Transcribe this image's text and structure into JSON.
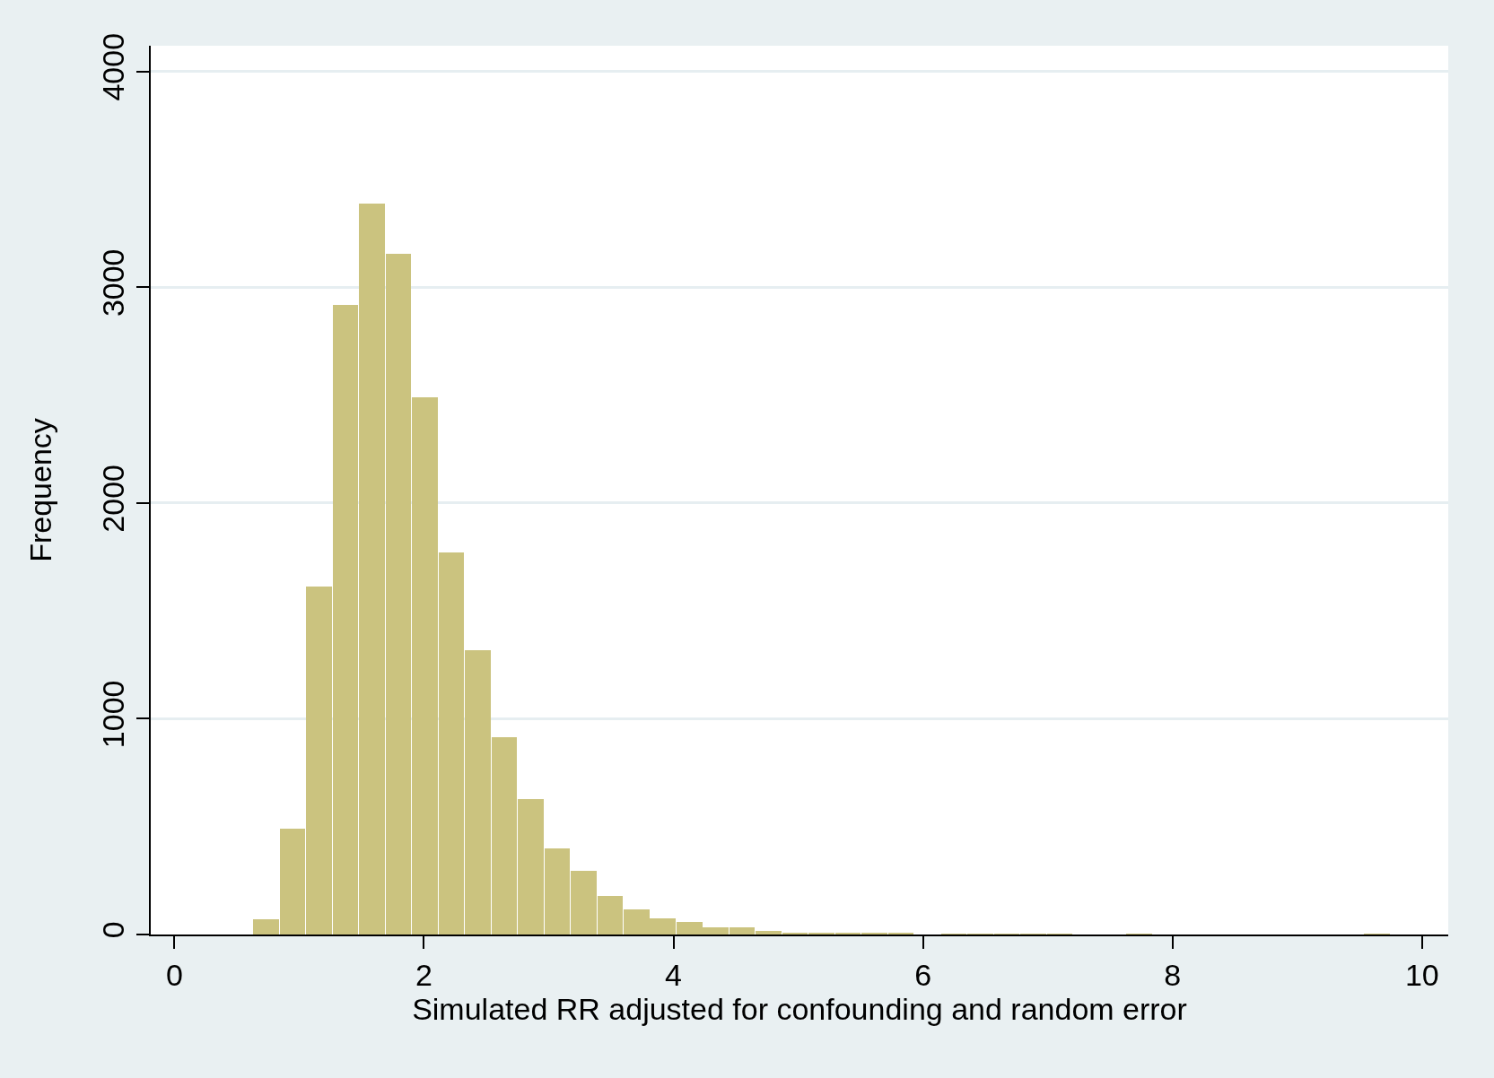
{
  "chart_data": {
    "type": "histogram",
    "xlabel": "Simulated RR adjusted for confounding and random error",
    "ylabel": "Frequency",
    "bins": [
      0.629,
      0.841,
      1.053,
      1.265,
      1.477,
      1.689,
      1.901,
      2.113,
      2.325,
      2.537,
      2.749,
      2.961,
      3.173,
      3.385,
      3.597,
      3.809,
      4.021,
      4.233,
      4.445,
      4.657,
      4.869,
      5.081,
      5.293,
      5.505,
      5.717,
      5.929,
      6.141,
      6.353,
      6.565,
      6.777,
      6.989,
      7.201,
      7.413,
      7.625,
      7.837,
      8.049,
      8.261,
      8.473,
      8.685,
      8.897,
      9.109,
      9.321,
      9.533,
      9.745
    ],
    "values": [
      70,
      490,
      1613,
      2920,
      3387,
      3157,
      2490,
      1772,
      1319,
      913,
      629,
      401,
      297,
      180,
      116,
      73,
      58,
      34,
      34,
      18,
      9,
      5,
      9,
      5,
      5,
      0,
      2,
      2,
      2,
      2,
      2,
      0,
      0,
      2,
      0,
      0,
      0,
      0,
      0,
      0,
      0,
      0,
      2
    ],
    "color": "#cbc37f",
    "xlim": [
      -0.19,
      10.21
    ],
    "ylim": [
      0,
      4120
    ],
    "xticks": [
      0,
      2,
      4,
      6,
      8,
      10
    ],
    "yticks": [
      0,
      1000,
      2000,
      3000,
      4000
    ],
    "grid": "y"
  }
}
